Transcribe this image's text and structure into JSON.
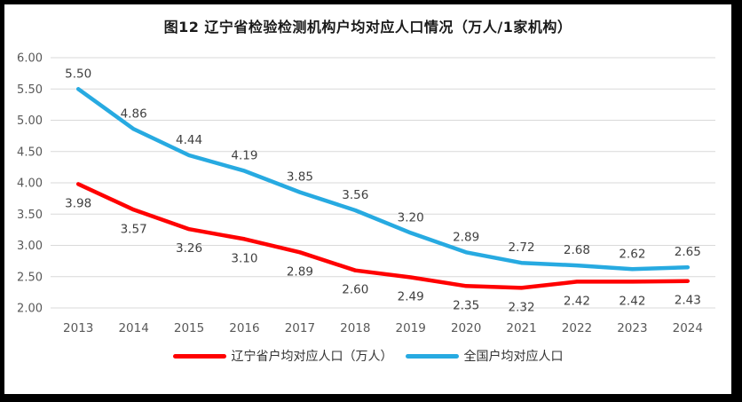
{
  "title": "图12 辽宁省检验检测机构户均对应人口情况（万人/1家机构）",
  "chart_data": {
    "type": "line",
    "categories": [
      "2013",
      "2014",
      "2015",
      "2016",
      "2017",
      "2018",
      "2019",
      "2020",
      "2021",
      "2022",
      "2023",
      "2024"
    ],
    "series": [
      {
        "name": "辽宁省户均对应人口（万人）",
        "color": "#FF0000",
        "label_position": "below",
        "values": [
          3.98,
          3.57,
          3.26,
          3.1,
          2.89,
          2.6,
          2.49,
          2.35,
          2.32,
          2.42,
          2.42,
          2.43
        ]
      },
      {
        "name": "全国户均对应人口",
        "color": "#27AAE1",
        "label_position": "above",
        "values": [
          5.5,
          4.86,
          4.44,
          4.19,
          3.85,
          3.56,
          3.2,
          2.89,
          2.72,
          2.68,
          2.62,
          2.65
        ]
      }
    ],
    "ylim": [
      2.0,
      6.0
    ],
    "ytick_labels": [
      "2.00",
      "2.50",
      "3.00",
      "3.50",
      "4.00",
      "4.50",
      "5.00",
      "5.50",
      "6.00"
    ],
    "grid": true,
    "legend_position": "bottom",
    "data_labels": true
  },
  "colors": {
    "grid": "#D9D9D9",
    "axis_text": "#595959",
    "data_label_text": "#404040",
    "frame_border": "#000000"
  }
}
